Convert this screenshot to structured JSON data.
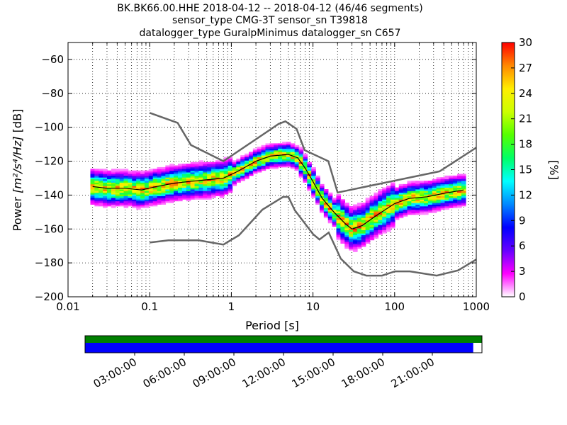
{
  "title_lines": [
    "BK.BK66.00.HHE   2018-04-12 -- 2018-04-12  (46/46 segments)",
    "sensor_type CMG-3T sensor_sn T39818",
    "datalogger_type GuralpMinimus datalogger_sn C657"
  ],
  "chart_data": {
    "type": "heatmap",
    "subtype": "probabilistic power spectral density",
    "xlabel": "Period [s]",
    "ylabel": "Power [m²/s⁴/Hz] [dB]",
    "ylabel_parts": {
      "prefix": "Power ",
      "units": "[m²/s⁴/Hz]",
      "suffix": " [dB]"
    },
    "x_scale": "log",
    "xlim": [
      0.01,
      1000
    ],
    "ylim": [
      -200,
      -50
    ],
    "x_ticks": [
      0.01,
      0.1,
      1,
      10,
      100,
      1000
    ],
    "x_tick_labels": [
      "0.01",
      "0.1",
      "1",
      "10",
      "100",
      "1000"
    ],
    "y_ticks": [
      -200,
      -180,
      -160,
      -140,
      -120,
      -100,
      -80,
      -60
    ],
    "y_tick_labels": [
      "−200",
      "−180",
      "−160",
      "−140",
      "−120",
      "−100",
      "−80",
      "−60"
    ],
    "grid": true,
    "mode_curve": [
      [
        0.02,
        -135
      ],
      [
        0.03,
        -136
      ],
      [
        0.05,
        -136
      ],
      [
        0.08,
        -137
      ],
      [
        0.12,
        -135
      ],
      [
        0.2,
        -133
      ],
      [
        0.3,
        -132
      ],
      [
        0.5,
        -131
      ],
      [
        0.8,
        -130
      ],
      [
        1.2,
        -126
      ],
      [
        2,
        -120
      ],
      [
        3,
        -117
      ],
      [
        5,
        -116
      ],
      [
        6.5,
        -118
      ],
      [
        8,
        -124
      ],
      [
        10,
        -132
      ],
      [
        13,
        -142
      ],
      [
        18,
        -150
      ],
      [
        25,
        -157
      ],
      [
        30,
        -160
      ],
      [
        40,
        -158
      ],
      [
        60,
        -152
      ],
      [
        100,
        -145
      ],
      [
        150,
        -142
      ],
      [
        250,
        -141
      ],
      [
        400,
        -139
      ],
      [
        700,
        -137
      ]
    ],
    "nhnm": {
      "name": "NHNM",
      "points": [
        [
          0.1,
          -91.5
        ],
        [
          0.22,
          -97.4
        ],
        [
          0.32,
          -110.5
        ],
        [
          0.8,
          -120
        ],
        [
          3.8,
          -98
        ],
        [
          4.6,
          -96.5
        ],
        [
          6.3,
          -101
        ],
        [
          7.9,
          -113.5
        ],
        [
          15.4,
          -120
        ],
        [
          20,
          -138.5
        ],
        [
          354.8,
          -126
        ],
        [
          1000,
          -112
        ]
      ]
    },
    "nlnm": {
      "name": "NLNM",
      "points": [
        [
          0.1,
          -168
        ],
        [
          0.17,
          -166.7
        ],
        [
          0.4,
          -166.7
        ],
        [
          0.8,
          -169.2
        ],
        [
          1.24,
          -163.7
        ],
        [
          2.4,
          -148.6
        ],
        [
          4.3,
          -141.1
        ],
        [
          5,
          -141.1
        ],
        [
          6,
          -149
        ],
        [
          10,
          -163
        ],
        [
          12,
          -166.2
        ],
        [
          15.6,
          -162.1
        ],
        [
          21.9,
          -177.5
        ],
        [
          31.6,
          -185
        ],
        [
          45,
          -187.5
        ],
        [
          70,
          -187.5
        ],
        [
          101,
          -185
        ],
        [
          154,
          -185
        ],
        [
          328,
          -187.5
        ],
        [
          600,
          -184.4
        ],
        [
          1000,
          -178
        ]
      ]
    },
    "colorbar": {
      "label": "[%]",
      "min": 0,
      "max": 30,
      "ticks": [
        0,
        3,
        6,
        9,
        12,
        15,
        18,
        21,
        24,
        27,
        30
      ],
      "tick_labels": [
        "0",
        "3",
        "6",
        "9",
        "12",
        "15",
        "18",
        "21",
        "24",
        "27",
        "30"
      ],
      "colormap": "pqlx",
      "colors": [
        "#ffffff",
        "#ff00ff",
        "#6600ff",
        "#0000ff",
        "#0088ff",
        "#00ffff",
        "#00ff66",
        "#55ff00",
        "#ccff00",
        "#ffee00",
        "#ff8800",
        "#ff0000"
      ]
    }
  },
  "timeline": {
    "tick_labels": [
      "03:00:00",
      "06:00:00",
      "09:00:00",
      "12:00:00",
      "15:00:00",
      "18:00:00",
      "21:00:00"
    ],
    "tick_hours": [
      3,
      6,
      9,
      12,
      15,
      18,
      21
    ],
    "total_hours": 24,
    "top_bar_coverage": 1.0,
    "bottom_bar_coverage": 0.978,
    "top_bar_color": "#008000",
    "bottom_bar_color": "#0000ff"
  }
}
